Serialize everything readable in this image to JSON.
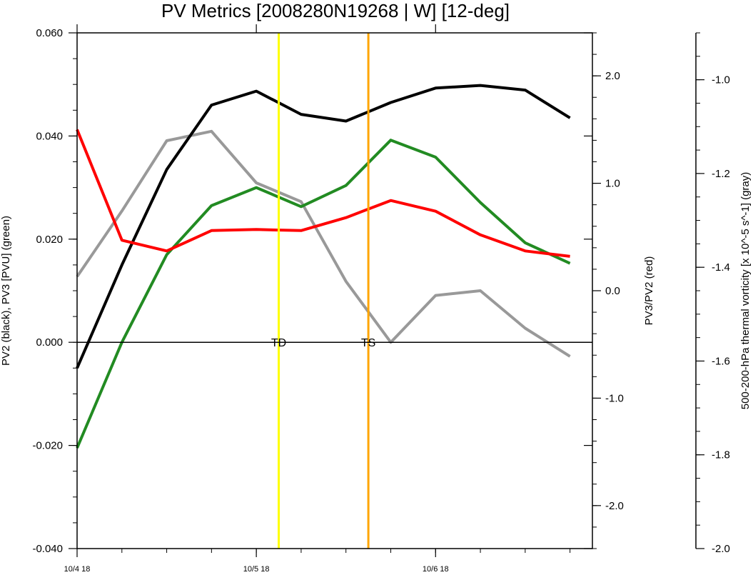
{
  "chart_data": {
    "type": "line",
    "title": "PV Metrics [2008280N19268 | W] [12-deg]",
    "x": [
      "10/4 18",
      "10/5 00",
      "10/5 06",
      "10/5 12",
      "10/5 18",
      "10/6 00",
      "10/6 06",
      "10/6 12",
      "10/6 18",
      "10/7 00",
      "10/7 06",
      "10/7 12"
    ],
    "x_tick_labels": [
      "10/4 18",
      "10/5 18",
      "10/6 18"
    ],
    "xlim": [
      "10/4 18",
      "10/7 15"
    ],
    "yaxes": {
      "left": {
        "label": "PV2 (black), PV3 [PVU] (green)",
        "ylim": [
          -0.04,
          0.06
        ],
        "ticks": [
          "-0.040",
          "-0.020",
          "0.000",
          "0.020",
          "0.040",
          "0.060"
        ]
      },
      "right": {
        "label": "PV3/PV2 (red)",
        "ylim": [
          -2.4,
          2.4
        ],
        "ticks": [
          "-2.0",
          "-1.0",
          "0.0",
          "1.0",
          "2.0"
        ]
      },
      "far_right": {
        "label": "500-200-hPa thermal vorticity [x 10^-5 s^-1] (gray)",
        "ylim": [
          -2.0,
          -0.9
        ],
        "ticks": [
          "-2.0",
          "-1.8",
          "-1.6",
          "-1.4",
          "-1.2",
          "-1.0"
        ]
      }
    },
    "series": [
      {
        "axis": "left",
        "color": "#000000",
        "values": [
          -0.005,
          0.015,
          0.0335,
          0.046,
          0.0487,
          0.0442,
          0.0429,
          0.0465,
          0.0493,
          0.0498,
          0.0489,
          0.0435
        ]
      },
      {
        "axis": "left",
        "color": "#228b22",
        "values": [
          -0.0205,
          0.0,
          0.017,
          0.0265,
          0.03,
          0.0263,
          0.0304,
          0.0392,
          0.0359,
          0.0271,
          0.0193,
          0.0153
        ]
      },
      {
        "axis": "right",
        "color": "#ff0000",
        "values": [
          1.5,
          0.47,
          0.37,
          0.56,
          0.57,
          0.56,
          0.68,
          0.84,
          0.74,
          0.52,
          0.37,
          0.32
        ]
      },
      {
        "axis": "far_right",
        "color": "#999999",
        "values": [
          -1.42,
          -1.28,
          -1.13,
          -1.11,
          -1.22,
          -1.26,
          -1.43,
          -1.56,
          -1.46,
          -1.45,
          -1.53,
          -1.59
        ]
      }
    ],
    "zero_line": 0.0,
    "markers": [
      {
        "label": "TD",
        "x": "10/5 21",
        "color": "#ffff00"
      },
      {
        "label": "TS",
        "x": "10/6 09",
        "color": "#ffa500"
      }
    ],
    "grid": false
  }
}
